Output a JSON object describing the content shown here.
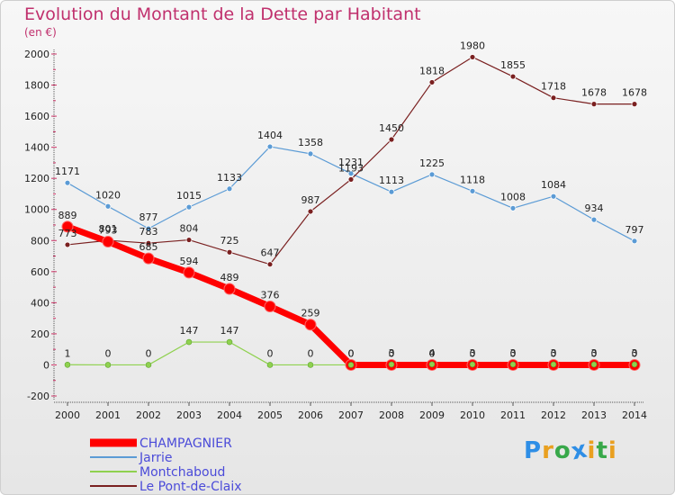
{
  "chart_data": {
    "type": "line",
    "title": "Evolution du Montant de la Dette par Habitant",
    "subtitle": "(en €)",
    "categories": [
      "2000",
      "2001",
      "2002",
      "2003",
      "2004",
      "2005",
      "2006",
      "2007",
      "2008",
      "2009",
      "2010",
      "2011",
      "2012",
      "2013",
      "2014"
    ],
    "y_ticks": [
      "-200",
      "0",
      "200",
      "400",
      "600",
      "800",
      "1000",
      "1200",
      "1400",
      "1600",
      "1800",
      "2000"
    ],
    "ylim": [
      -200,
      2000
    ],
    "grid": false,
    "legend_position": "bottom-left",
    "series": [
      {
        "name": "CHAMPAGNIER",
        "color": "#ff0000",
        "values": [
          889,
          793,
          685,
          594,
          489,
          376,
          259,
          0,
          0,
          0,
          0,
          0,
          0,
          0,
          0
        ],
        "labels": [
          "889",
          "793",
          "685",
          "594",
          "489",
          "376",
          "259",
          "0",
          "0",
          "0",
          "0",
          "0",
          "0",
          "0",
          "0"
        ]
      },
      {
        "name": "Jarrie",
        "color": "#5b9bd5",
        "values": [
          1171,
          1020,
          877,
          1015,
          1133,
          1404,
          1358,
          1231,
          1113,
          1225,
          1118,
          1008,
          1084,
          934,
          797
        ],
        "labels": [
          "1171",
          "1020",
          "877",
          "1015",
          "1133",
          "1404",
          "1358",
          "1231",
          "1113",
          "1225",
          "1118",
          "1008",
          "1084",
          "934",
          "797"
        ]
      },
      {
        "name": "Montchaboud",
        "color": "#8fd14f",
        "values": [
          1,
          0,
          0,
          147,
          147,
          0,
          0,
          0,
          3,
          4,
          3,
          3,
          3,
          3,
          3
        ],
        "labels": [
          "1",
          "0",
          "0",
          "147",
          "147",
          "0",
          "0",
          "0",
          "3",
          "4",
          "3",
          "3",
          "3",
          "3",
          "3"
        ]
      },
      {
        "name": "Le Pont-de-Claix",
        "color": "#7a2020",
        "values": [
          773,
          801,
          783,
          804,
          725,
          647,
          987,
          1193,
          1450,
          1818,
          1980,
          1855,
          1718,
          1678,
          1678
        ],
        "labels": [
          "773",
          "801",
          "783",
          "804",
          "725",
          "647",
          "987",
          "1193",
          "1450",
          "1818",
          "1980",
          "1855",
          "1718",
          "1678",
          "1678"
        ]
      }
    ]
  },
  "logo": {
    "letters": [
      "P",
      "r",
      "o",
      "x",
      "i",
      "t",
      "i"
    ],
    "colors": [
      "#2e8ee6",
      "#e9a020",
      "#38a84a",
      "#2e8ee6",
      "#e9a020",
      "#38a84a",
      "#e9a020"
    ]
  }
}
